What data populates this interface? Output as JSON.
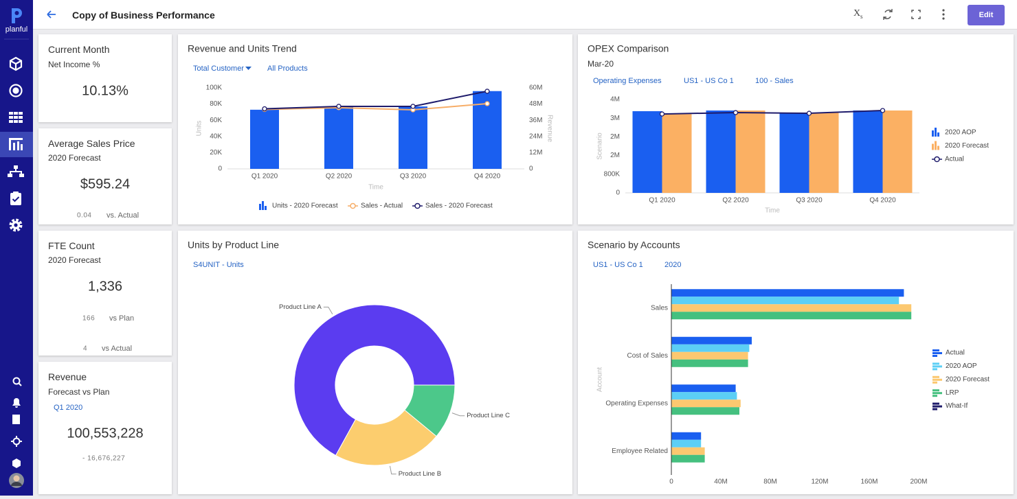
{
  "sidebar": {
    "logo_text": "planful"
  },
  "header": {
    "title": "Copy of Business Performance",
    "variables_icon": {
      "symbol": "X",
      "subscript": "s"
    },
    "edit_button": "Edit"
  },
  "kpi_cards": [
    {
      "title": "Current Month",
      "subtitle": "Net Income %",
      "value": "10.13%"
    },
    {
      "title": "Average Sales Price",
      "subtitle": "2020 Forecast",
      "value": "$595.24",
      "comparisons": [
        {
          "value": "0.04",
          "label": "vs. Actual"
        }
      ]
    },
    {
      "title": "FTE Count",
      "subtitle": "2020 Forecast",
      "value": "1,336",
      "comparisons": [
        {
          "value": "166",
          "label": "vs Plan"
        },
        {
          "value": "4",
          "label": "vs Actual"
        }
      ]
    },
    {
      "title": "Revenue",
      "subtitle": "Forecast vs Plan",
      "period": "Q1 2020",
      "value": "100,553,228",
      "comparisons": [
        {
          "value": "- 16,676,227"
        }
      ]
    }
  ],
  "charts": [
    {
      "type": "combo",
      "title": "Revenue and Units Trend",
      "filters": [
        "Total Customer",
        "All Products"
      ],
      "categories": [
        "Q1 2020",
        "Q2 2020",
        "Q3 2020",
        "Q4 2020"
      ],
      "x_label": "Time",
      "y_label": "Units",
      "y2_label": "Revenue",
      "ylim": [
        0,
        100000
      ],
      "yticks": [
        0,
        {
          "value": 20000,
          "label": "20K"
        },
        {
          "value": 40000,
          "label": "40K"
        },
        {
          "value": 60000,
          "label": "60K"
        },
        {
          "value": 80000,
          "label": "80K"
        },
        {
          "value": 100000,
          "label": "100K"
        }
      ],
      "y2lim": [
        0,
        60000000
      ],
      "y2ticks": [
        0,
        {
          "value": 12000000,
          "label": "12M"
        },
        {
          "value": 24000000,
          "label": "24M"
        },
        {
          "value": 36000000,
          "label": "36M"
        },
        {
          "value": 48000000,
          "label": "48M"
        },
        {
          "value": 60000000,
          "label": "60M"
        }
      ],
      "grid": false,
      "legend": "bottom",
      "series": [
        {
          "name": "Units - 2020 Forecast",
          "type": "bar",
          "color": "#1a5ff0",
          "values": [
            73000,
            77000,
            77000,
            96000
          ]
        },
        {
          "name": "Sales - Actual",
          "type": "line",
          "axis": "y2",
          "color": "#f7ad67",
          "values": [
            44000000,
            45300000,
            43700000,
            48300000
          ]
        },
        {
          "name": "Sales - 2020 Forecast",
          "type": "line",
          "axis": "y2",
          "color": "#1e1b6b",
          "values": [
            44500000,
            46300000,
            46300000,
            57500000
          ]
        }
      ]
    },
    {
      "type": "combo",
      "title": "OPEX Comparison",
      "subtitle": "Mar-20",
      "filters": [
        "Operating Expenses",
        "US1 - US Co 1",
        "100 - Sales"
      ],
      "categories": [
        "Q1 2020",
        "Q2 2020",
        "Q3 2020",
        "Q4 2020"
      ],
      "x_label": "Time",
      "y_label": "Scenario",
      "ylim": [
        0,
        4000000
      ],
      "yticks": [
        0,
        {
          "value": 800000,
          "label": "800K"
        },
        {
          "value": 1600000,
          "label": "2M"
        },
        {
          "value": 2400000,
          "label": "2M"
        },
        {
          "value": 3200000,
          "label": "3M"
        },
        {
          "value": 4000000,
          "label": "4M"
        }
      ],
      "grid": false,
      "legend": "right",
      "series": [
        {
          "name": "2020 AOP",
          "type": "bar",
          "color": "#1a5ff0",
          "values": [
            3500000,
            3530000,
            3440000,
            3530000
          ]
        },
        {
          "name": "2020 Forecast",
          "type": "bar",
          "color": "#fbb063",
          "values": [
            3380000,
            3530000,
            3440000,
            3530000
          ]
        },
        {
          "name": "Actual",
          "type": "line",
          "color": "#1e1b6b",
          "values": [
            3380000,
            3440000,
            3410000,
            3530000
          ]
        }
      ]
    },
    {
      "type": "donut",
      "title": "Units by Product Line",
      "filters": [
        "S4UNIT - Units"
      ],
      "categories": [
        "Product Line A",
        "Product Line B",
        "Product Line C"
      ],
      "values": [
        67,
        22,
        11
      ],
      "colors": [
        "#5b3cf0",
        "#fccd6e",
        "#4cc88a"
      ]
    },
    {
      "type": "hbar",
      "title": "Scenario by Accounts",
      "filters": [
        "US1 - US Co 1",
        "2020"
      ],
      "categories": [
        "Sales",
        "Cost of Sales",
        "Operating Expenses",
        "Employee Related"
      ],
      "y_label": "Account",
      "xlim": [
        0,
        200000000
      ],
      "xticks": [
        0,
        {
          "value": 40000000,
          "label": "40M"
        },
        {
          "value": 80000000,
          "label": "80M"
        },
        {
          "value": 120000000,
          "label": "120M"
        },
        {
          "value": 160000000,
          "label": "160M"
        },
        {
          "value": 200000000,
          "label": "200M"
        }
      ],
      "grid": false,
      "legend": "right",
      "series": [
        {
          "name": "Actual",
          "color": "#1a5ff0",
          "values": [
            188000000,
            65000000,
            52000000,
            24000000
          ]
        },
        {
          "name": "2020 AOP",
          "color": "#5ccff5",
          "values": [
            184000000,
            63000000,
            53000000,
            24000000
          ]
        },
        {
          "name": "2020 Forecast",
          "color": "#fcc870",
          "values": [
            194000000,
            62000000,
            56000000,
            27000000
          ]
        },
        {
          "name": "LRP",
          "color": "#45c07f",
          "values": [
            194000000,
            62000000,
            55000000,
            27000000
          ]
        },
        {
          "name": "What-If",
          "color": "#1e1b6b",
          "values": [
            0,
            0,
            0,
            0
          ]
        }
      ]
    }
  ]
}
